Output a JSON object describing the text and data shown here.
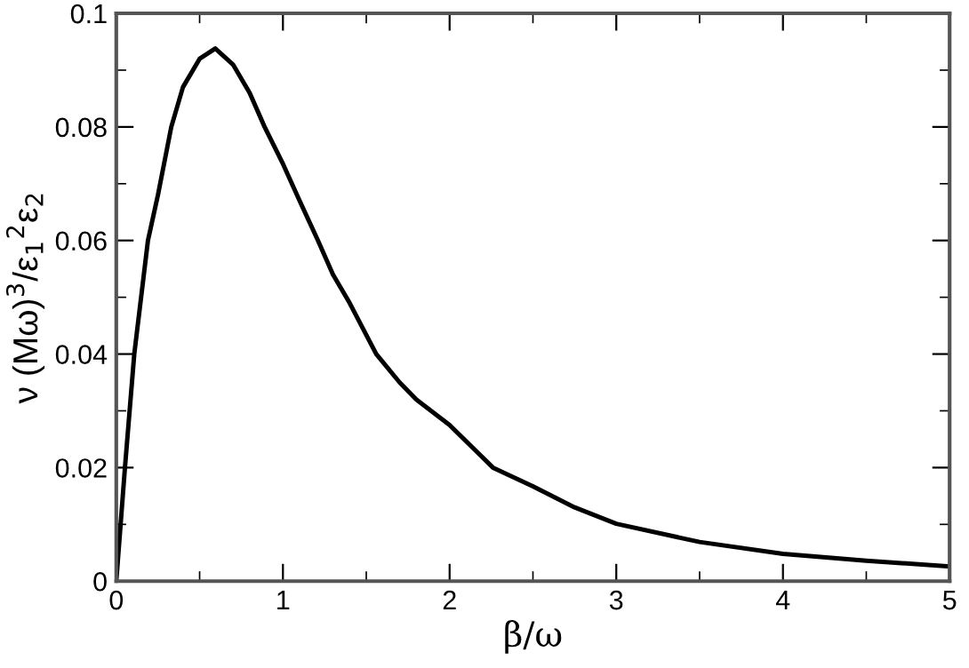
{
  "chart_data": {
    "type": "line",
    "xlabel": "β/ω",
    "ylabel": "ν (Mω)$^{3}$/ε$_{1}$$^{2}$ε$_{2}$",
    "x": [
      0,
      0.052,
      0.108,
      0.19,
      0.25,
      0.33,
      0.4,
      0.5,
      0.594,
      0.7,
      0.8,
      0.89,
      1.0,
      1.1,
      1.21,
      1.3,
      1.4,
      1.56,
      1.7,
      1.8,
      2.0,
      2.26,
      2.5,
      2.75,
      3.0,
      3.5,
      4.0,
      4.5,
      5.0
    ],
    "series": [
      {
        "color": "#000000",
        "values": [
          0,
          0.02,
          0.04,
          0.06,
          0.068,
          0.08,
          0.087,
          0.092,
          0.0938,
          0.091,
          0.086,
          0.08,
          0.0735,
          0.067,
          0.06,
          0.054,
          0.049,
          0.04,
          0.035,
          0.032,
          0.0275,
          0.02,
          0.0167,
          0.013,
          0.0101,
          0.0069,
          0.0048,
          0.0036,
          0.0026
        ]
      }
    ],
    "xlim": [
      0,
      5
    ],
    "ylim": [
      0,
      0.1
    ],
    "xticks": [
      0,
      {
        "value": 0.5,
        "label": null
      },
      1,
      {
        "value": 1.5,
        "label": null
      },
      2,
      {
        "value": 2.5,
        "label": null
      },
      3,
      {
        "value": 3.5,
        "label": null
      },
      4,
      {
        "value": 4.5,
        "label": null
      },
      5
    ],
    "yticks": [
      {
        "value": 0,
        "label": "0"
      },
      {
        "value": 0.01,
        "label": null
      },
      0.02,
      {
        "value": 0.03,
        "label": null
      },
      0.04,
      {
        "value": 0.05,
        "label": null
      },
      0.06,
      {
        "value": 0.07,
        "label": null
      },
      0.08,
      {
        "value": 0.09,
        "label": null
      },
      0.1
    ],
    "grid": false,
    "legend": false,
    "marker": "none",
    "line_style": "solid"
  }
}
